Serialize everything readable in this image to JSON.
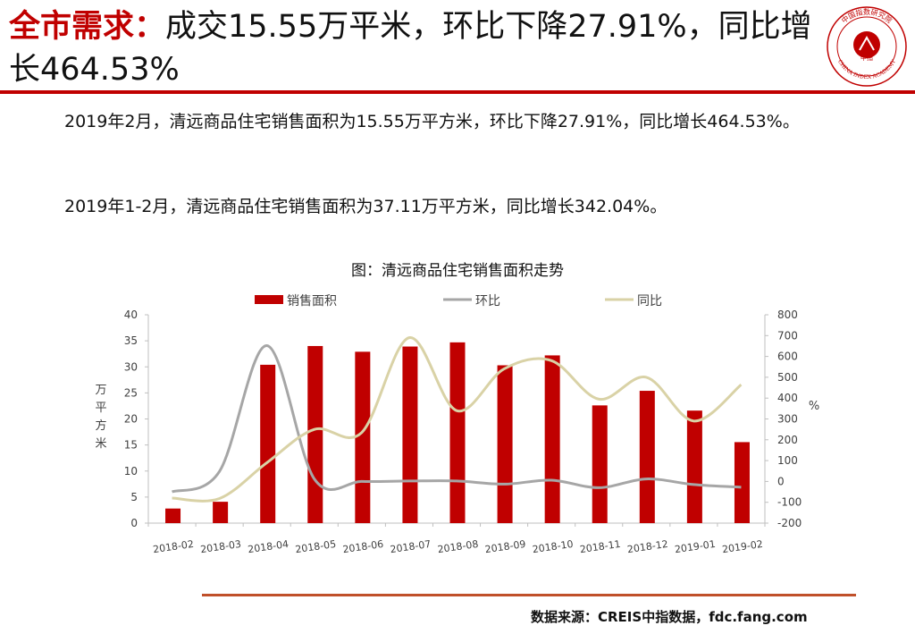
{
  "header": {
    "keyword": "全市需求：",
    "title_rest": "成交15.55万平米，环比下降27.91%，同比增长464.53%",
    "logo": {
      "icon": "china-index-academy-seal",
      "text_top": "中国指数研究院",
      "text_mid": "中指",
      "text_bottom": "CHINA INDEX ACADEMY"
    }
  },
  "paragraphs": [
    "2019年2月，清远商品住宅销售面积为15.55万平方米，环比下降27.91%，同比增长464.53%。",
    "2019年1-2月，清远商品住宅销售面积为37.11万平方米，同比增长342.04%。"
  ],
  "chart_data": {
    "type": "bar",
    "title": "图：清远商品住宅销售面积走势",
    "categories": [
      "2018-02",
      "2018-03",
      "2018-04",
      "2018-05",
      "2018-06",
      "2018-07",
      "2018-08",
      "2018-09",
      "2018-10",
      "2018-11",
      "2018-12",
      "2019-01",
      "2019-02"
    ],
    "y_left": {
      "label": "万平方米",
      "min": 0,
      "max": 40,
      "ticks": [
        0,
        5,
        10,
        15,
        20,
        25,
        30,
        35,
        40
      ]
    },
    "y_right": {
      "label": "%",
      "min": -200,
      "max": 800,
      "ticks": [
        -200,
        -100,
        0,
        100,
        200,
        300,
        400,
        500,
        600,
        700,
        800
      ]
    },
    "legend_position": "top",
    "grid": false,
    "series": [
      {
        "name": "销售面积",
        "type": "bar",
        "axis": "left",
        "color": "#c00000",
        "values": [
          2.8,
          4.1,
          30.4,
          34.0,
          32.9,
          33.9,
          34.7,
          30.3,
          32.2,
          22.6,
          25.4,
          21.6,
          15.55
        ]
      },
      {
        "name": "环比",
        "type": "line",
        "axis": "right",
        "color": "#a6a6a6",
        "values": [
          -50,
          48,
          652,
          12,
          0,
          2,
          2,
          -13,
          6,
          -30,
          12,
          -15,
          -27.91
        ]
      },
      {
        "name": "同比",
        "type": "line",
        "axis": "right",
        "color": "#d9d2a6",
        "values": [
          -80,
          -82,
          90,
          250,
          235,
          690,
          340,
          540,
          580,
          395,
          500,
          290,
          464.53
        ]
      }
    ]
  },
  "footer": {
    "source": "数据来源：CREIS中指数据，fdc.fang.com"
  }
}
